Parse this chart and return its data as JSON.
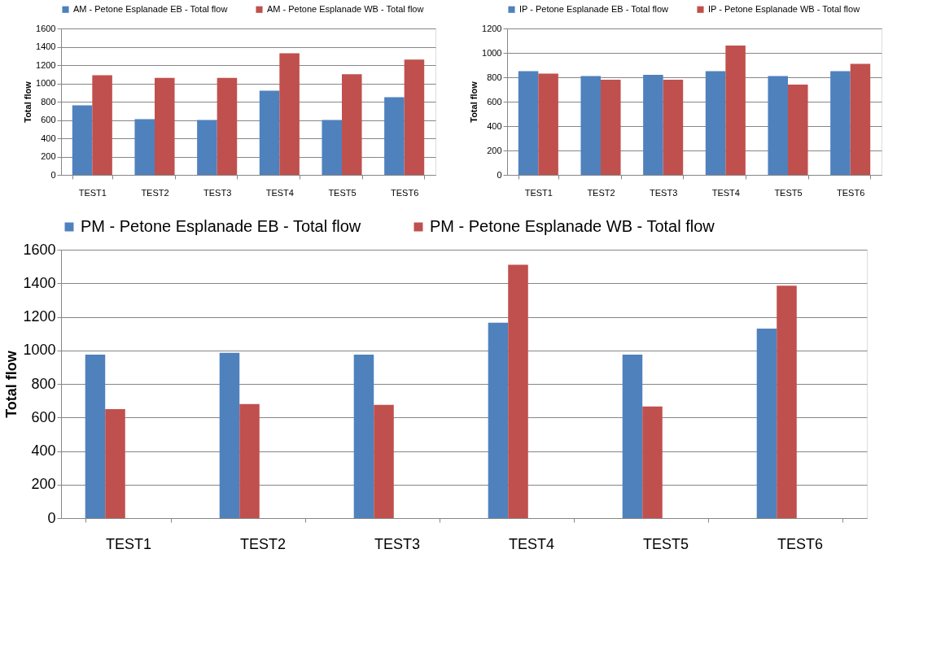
{
  "chart_data": [
    {
      "type": "bar",
      "ylabel": "Total flow",
      "categories": [
        "TEST1",
        "TEST2",
        "TEST3",
        "TEST4",
        "TEST5",
        "TEST6"
      ],
      "ylim": [
        0,
        1600
      ],
      "yticks": [
        0,
        200,
        400,
        600,
        800,
        1000,
        1200,
        1400,
        1600
      ],
      "grid": "y",
      "legend": "top",
      "series": [
        {
          "name": "AM - Petone Esplanade EB - Total flow",
          "color": "#4f81bd",
          "values": [
            760,
            610,
            600,
            920,
            600,
            850
          ]
        },
        {
          "name": "AM - Petone Esplanade WB - Total flow",
          "color": "#c0504d",
          "values": [
            1090,
            1060,
            1060,
            1330,
            1100,
            1260
          ]
        }
      ]
    },
    {
      "type": "bar",
      "ylabel": "Total flow",
      "categories": [
        "TEST1",
        "TEST2",
        "TEST3",
        "TEST4",
        "TEST5",
        "TEST6"
      ],
      "ylim": [
        0,
        1200
      ],
      "yticks": [
        0,
        200,
        400,
        600,
        800,
        1000,
        1200
      ],
      "grid": "y",
      "legend": "top",
      "series": [
        {
          "name": "IP - Petone Esplanade EB - Total flow",
          "color": "#4f81bd",
          "values": [
            850,
            810,
            820,
            850,
            810,
            850
          ]
        },
        {
          "name": "IP - Petone Esplanade WB - Total flow",
          "color": "#c0504d",
          "values": [
            830,
            780,
            780,
            1060,
            740,
            910
          ]
        }
      ]
    },
    {
      "type": "bar",
      "ylabel": "Total flow",
      "categories": [
        "TEST1",
        "TEST2",
        "TEST3",
        "TEST4",
        "TEST5",
        "TEST6"
      ],
      "ylim": [
        0,
        1600
      ],
      "yticks": [
        0,
        200,
        400,
        600,
        800,
        1000,
        1200,
        1400,
        1600
      ],
      "grid": "y",
      "legend": "top",
      "series": [
        {
          "name": "PM - Petone Esplanade EB - Total flow",
          "color": "#4f81bd",
          "values": [
            975,
            985,
            975,
            1165,
            975,
            1130
          ]
        },
        {
          "name": "PM - Petone Esplanade WB - Total flow",
          "color": "#c0504d",
          "values": [
            650,
            680,
            675,
            1510,
            665,
            1385
          ]
        }
      ]
    }
  ]
}
